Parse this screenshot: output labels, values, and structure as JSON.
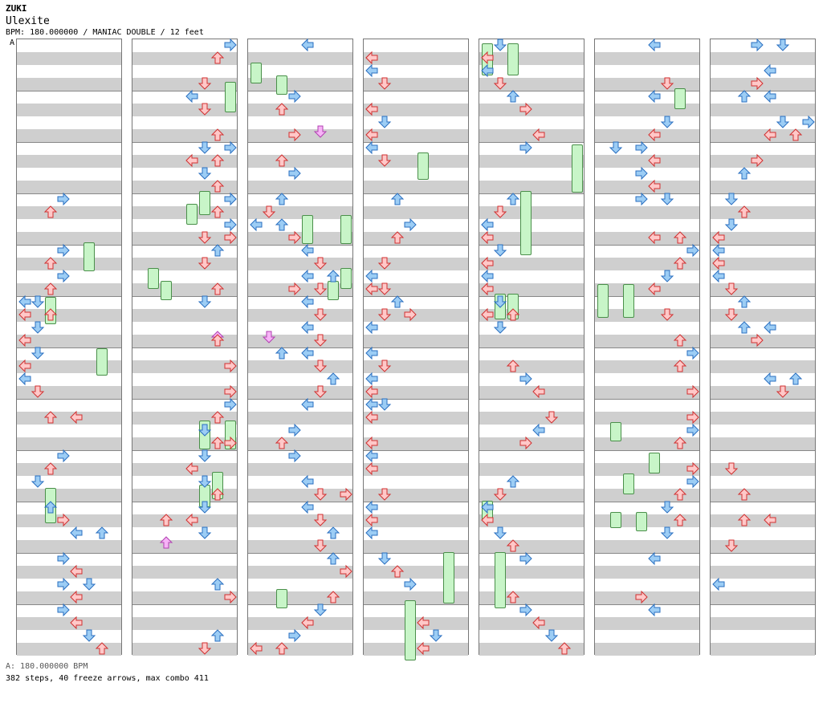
{
  "header": {
    "artist": "ZUKI",
    "title": "Ulexite",
    "meta": "BPM: 180.000000 / MANIAC DOUBLE / 12 feet"
  },
  "section_marker": "A",
  "footer": {
    "bpm_line": "A: 180.000000 BPM",
    "stats_line": "382 steps, 40 freeze arrows, max combo 411"
  },
  "colors": {
    "red_fill": "#ffc8c8",
    "red_stroke": "#d03030",
    "blue_fill": "#9ccdf5",
    "blue_stroke": "#2a6fc0",
    "pink_fill": "#f7b3f7",
    "pink_stroke": "#b040b0",
    "freeze_fill": "#c8f5c8",
    "freeze_stroke": "#4a8f4a",
    "stripe": "#cfcfcf"
  },
  "chart_data": {
    "type": "dance-chart",
    "mode": "MANIAC DOUBLE",
    "feet": 12,
    "bpm": 180.0,
    "columns": 7,
    "measures_per_column": 12,
    "lanes": [
      "L1",
      "D1",
      "U1",
      "R1",
      "L2",
      "D2",
      "U2",
      "R2"
    ],
    "steps": 382,
    "freeze_arrows": 40,
    "max_combo": 411
  }
}
